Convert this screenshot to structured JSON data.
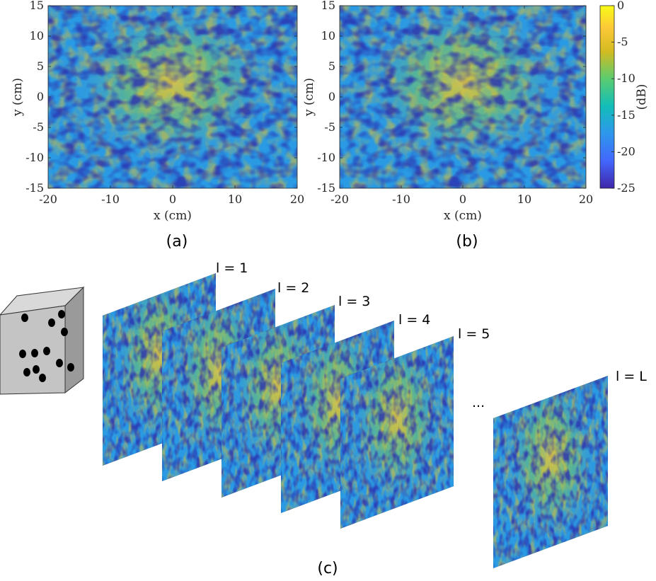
{
  "chart_data": [
    {
      "type": "heatmap",
      "panel_label": "(a)",
      "xlabel": "x (cm)",
      "ylabel": "y (cm)",
      "xlim": [
        -20,
        20
      ],
      "ylim": [
        -15,
        15
      ],
      "xticks": [
        "-20",
        "-10",
        "0",
        "10",
        "20"
      ],
      "yticks": [
        "15",
        "10",
        "5",
        "0",
        "-5",
        "-10",
        "-15"
      ]
    },
    {
      "type": "heatmap",
      "panel_label": "(b)",
      "xlabel": "x (cm)",
      "ylabel": "y (cm)",
      "xlim": [
        -20,
        20
      ],
      "ylim": [
        -15,
        15
      ],
      "xticks": [
        "-20",
        "-10",
        "0",
        "10",
        "20"
      ],
      "yticks": [
        "15",
        "10",
        "5",
        "0",
        "-5",
        "-10",
        "-15"
      ]
    }
  ],
  "colorbar": {
    "label": "(dB)",
    "range": [
      -25,
      0
    ],
    "ticks": [
      "0",
      "-5",
      "-10",
      "-15",
      "-20",
      "-25"
    ],
    "colormap": [
      "#3e26a8",
      "#4367fd",
      "#2e97ec",
      "#12beb9",
      "#5acc6f",
      "#d4bb21",
      "#fcc938",
      "#f9fb15"
    ]
  },
  "diagram": {
    "panel_label": "(c)",
    "layers": [
      "l = 1",
      "l = 2",
      "l = 3",
      "l = 4",
      "l = 5",
      "l = L"
    ],
    "ellipsis": "..."
  }
}
